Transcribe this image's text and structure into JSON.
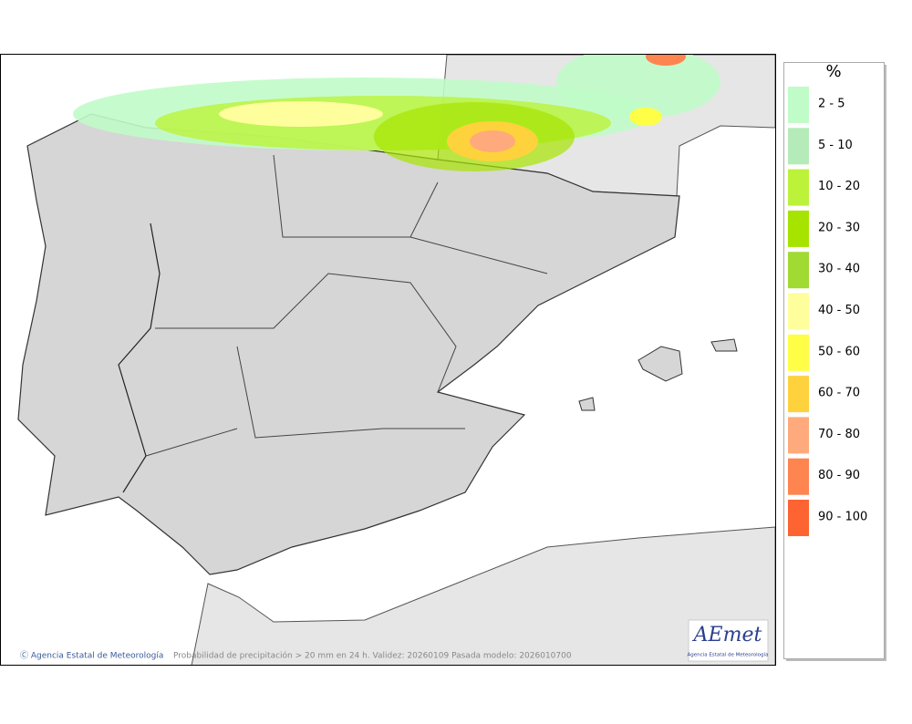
{
  "legend": {
    "title": "%",
    "items": [
      {
        "label": "2 - 5",
        "color": "#c0fcc8"
      },
      {
        "label": "5 - 10",
        "color": "#b4ebb8"
      },
      {
        "label": "10 - 20",
        "color": "#bcf23a"
      },
      {
        "label": "20 - 30",
        "color": "#a6e400"
      },
      {
        "label": "30 - 40",
        "color": "#a0da32"
      },
      {
        "label": "40 - 50",
        "color": "#fefe9c"
      },
      {
        "label": "50 - 60",
        "color": "#fefe46"
      },
      {
        "label": "60 - 70",
        "color": "#fed23c"
      },
      {
        "label": "70 - 80",
        "color": "#feaa7c"
      },
      {
        "label": "80 - 90",
        "color": "#fe8450"
      },
      {
        "label": "90 - 100",
        "color": "#fe6432"
      }
    ]
  },
  "footer": {
    "credit": "Ⓒ Agencia Estatal de Meteorología",
    "caption": "Probabilidad de precipitación > 20 mm en 24 h. Validez: 20260109 Pasada modelo: 2026010700"
  },
  "logo": {
    "name": "AEmet",
    "subtitle": "Agencia Estatal de Meteorología"
  }
}
